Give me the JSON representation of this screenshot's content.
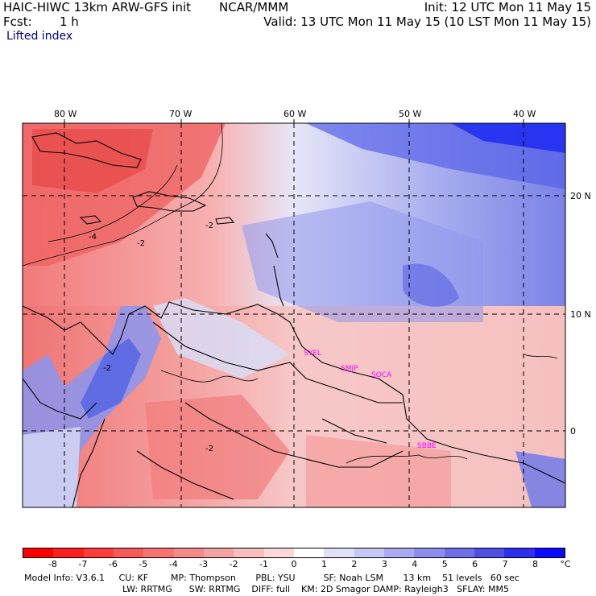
{
  "header": {
    "model": "HAIC-HIWC 13km ARW-GFS init",
    "org": "NCAR/MMM",
    "init": "Init: 12 UTC Mon 11 May 15",
    "fcst_label": "Fcst:",
    "fcst_value": "1 h",
    "valid": "Valid: 13 UTC Mon 11 May 15 (10 LST Mon 11 May 15)",
    "field": "Lifted index"
  },
  "map": {
    "lon_labels": [
      "80 W",
      "70 W",
      "60 W",
      "50 W",
      "40 W"
    ],
    "lat_labels": [
      "20 N",
      "10 N",
      "0"
    ],
    "contour_labels": [
      "-4",
      "-2",
      "-2",
      "-2",
      "-2"
    ],
    "stations": [
      "SYEL",
      "SMJP",
      "SOCA",
      "SBBE"
    ],
    "colors": {
      "station": "#ff00ff",
      "grid": "#000000"
    }
  },
  "colorbar": {
    "ticks": [
      "-8",
      "-7",
      "-6",
      "-5",
      "-4",
      "-3",
      "-2",
      "-1",
      "0",
      "1",
      "2",
      "3",
      "4",
      "5",
      "6",
      "7",
      "8"
    ],
    "unit": "°C",
    "colors": [
      "#ff0000",
      "#ff1e1e",
      "#ff3c3c",
      "#f85a5a",
      "#f57373",
      "#f58a8a",
      "#f5a2a2",
      "#f8bdbd",
      "#fcd9d9",
      "#ffffff",
      "#e0e0f8",
      "#c7c7f5",
      "#aaaaf2",
      "#8d8ded",
      "#6e6ee6",
      "#4f4fe6",
      "#2e2ef0",
      "#0a0aff"
    ]
  },
  "footer": {
    "line1": "Model Info: V3.6.1     CU: KF        MP: Thompson       PBL: YSU          SF: Noah LSM       13 km    51 levels   60 sec",
    "line2": "LW: RRTMG      SW: RRTMG    DIFF: full    KM: 2D Smagor DAMP: Rayleigh3   SFLAY: MM5"
  }
}
